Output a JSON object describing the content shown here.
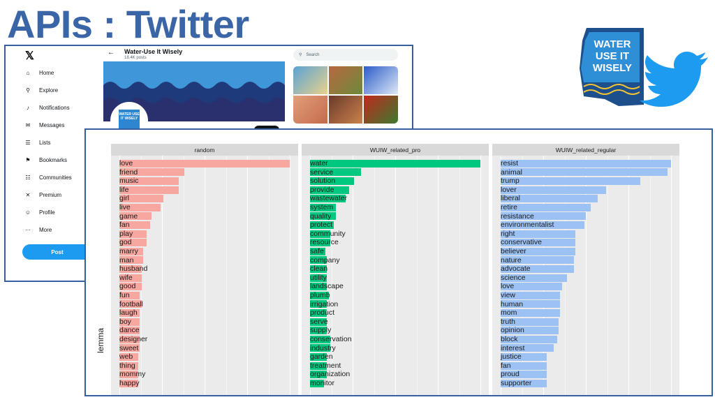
{
  "slide": {
    "title": "APIs : Twitter"
  },
  "twitter": {
    "sidebar": {
      "items": [
        {
          "label": "Home",
          "icon": "home-icon"
        },
        {
          "label": "Explore",
          "icon": "search-icon"
        },
        {
          "label": "Notifications",
          "icon": "bell-icon"
        },
        {
          "label": "Messages",
          "icon": "mail-icon"
        },
        {
          "label": "Lists",
          "icon": "list-icon"
        },
        {
          "label": "Bookmarks",
          "icon": "bookmark-icon"
        },
        {
          "label": "Communities",
          "icon": "communities-icon"
        },
        {
          "label": "Premium",
          "icon": "x-premium-icon"
        },
        {
          "label": "Profile",
          "icon": "profile-icon"
        },
        {
          "label": "More",
          "icon": "more-icon"
        }
      ],
      "post_label": "Post"
    },
    "profile": {
      "name": "Water-Use It Wisely",
      "posts": "18.4K posts",
      "avatar_text": "WATER USE IT WISELY"
    },
    "search": {
      "placeholder": "Search"
    },
    "colors": {
      "accent": "#1d9bf0",
      "banner": "#3f97da",
      "wave": "#1e3a7a"
    }
  },
  "logo": {
    "text_line1": "WATER",
    "text_line2": "USE IT",
    "text_line3": "WISELY"
  },
  "chart_data": {
    "type": "bar",
    "ylabel": "lemma",
    "facets": [
      {
        "name": "random",
        "color": "#f8a6a0",
        "categories": [
          "love",
          "friend",
          "music",
          "life",
          "girl",
          "live",
          "game",
          "fan",
          "play",
          "god",
          "marry",
          "man",
          "husband",
          "wife",
          "good",
          "fun",
          "football",
          "laugh",
          "boy",
          "dance",
          "designer",
          "sweet",
          "web",
          "thing",
          "mommy",
          "happy"
        ],
        "values": [
          1.0,
          0.38,
          0.35,
          0.35,
          0.26,
          0.24,
          0.19,
          0.18,
          0.16,
          0.16,
          0.14,
          0.14,
          0.13,
          0.13,
          0.13,
          0.12,
          0.13,
          0.12,
          0.12,
          0.12,
          0.12,
          0.12,
          0.11,
          0.11,
          0.11,
          0.11
        ]
      },
      {
        "name": "WUIW_related_pro",
        "color": "#00c97f",
        "categories": [
          "water",
          "service",
          "solution",
          "provide",
          "wastewater",
          "system",
          "quality",
          "protect",
          "community",
          "resource",
          "safe",
          "company",
          "clean",
          "utility",
          "landscape",
          "plumb",
          "irrigation",
          "product",
          "serve",
          "supply",
          "conservation",
          "industry",
          "garden",
          "treatment",
          "organization",
          "monitor"
        ],
        "values": [
          1.0,
          0.3,
          0.26,
          0.23,
          0.21,
          0.15,
          0.15,
          0.14,
          0.12,
          0.12,
          0.09,
          0.1,
          0.1,
          0.1,
          0.1,
          0.11,
          0.1,
          0.1,
          0.1,
          0.1,
          0.12,
          0.12,
          0.1,
          0.1,
          0.1,
          0.08
        ]
      },
      {
        "name": "WUIW_related_regular",
        "color": "#9cc2f3",
        "categories": [
          "resist",
          "animal",
          "trump",
          "lover",
          "liberal",
          "retire",
          "resistance",
          "environmentalist",
          "right",
          "conservative",
          "believer",
          "nature",
          "advocate",
          "science",
          "love",
          "view",
          "human",
          "mom",
          "truth",
          "opinion",
          "block",
          "interest",
          "justice",
          "fan",
          "proud",
          "supporter"
        ],
        "values": [
          1.0,
          0.98,
          0.82,
          0.62,
          0.57,
          0.53,
          0.5,
          0.49,
          0.44,
          0.44,
          0.44,
          0.43,
          0.43,
          0.39,
          0.36,
          0.35,
          0.35,
          0.35,
          0.34,
          0.34,
          0.33,
          0.31,
          0.27,
          0.27,
          0.27,
          0.27
        ]
      }
    ]
  }
}
